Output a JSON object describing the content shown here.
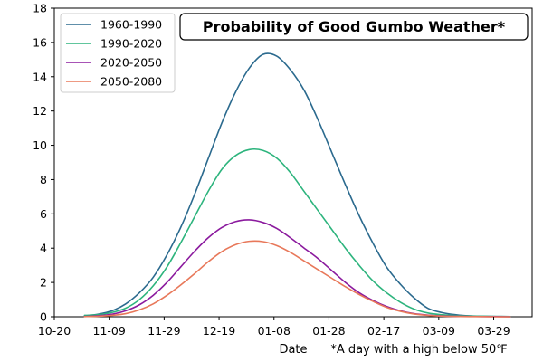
{
  "chart_data": {
    "type": "line",
    "title": "Probability of Good Gumbo Weather*",
    "xlabel": "Date",
    "ylabel": "",
    "footnote": "*A day with a high below 50℉",
    "xlim": [
      "10-20",
      "04-12"
    ],
    "ylim": [
      0,
      18
    ],
    "x_ticks": [
      "10-20",
      "11-09",
      "11-29",
      "12-19",
      "01-08",
      "01-28",
      "02-17",
      "03-09",
      "03-29"
    ],
    "y_ticks": [
      "0",
      "2",
      "4",
      "6",
      "8",
      "10",
      "12",
      "14",
      "16",
      "18"
    ],
    "grid": false,
    "legend_position": "top-left",
    "x": [
      "10-31",
      "11-05",
      "11-10",
      "11-15",
      "11-20",
      "11-25",
      "11-30",
      "12-05",
      "12-10",
      "12-15",
      "12-20",
      "12-25",
      "12-30",
      "01-04",
      "01-09",
      "01-14",
      "01-19",
      "01-24",
      "01-29",
      "02-03",
      "02-08",
      "02-13",
      "02-18",
      "02-23",
      "02-28",
      "03-05",
      "03-10",
      "03-15",
      "03-20",
      "03-25",
      "03-30",
      "04-04"
    ],
    "series": [
      {
        "name": "1960-1990",
        "color": "#2b6a8e",
        "values": [
          0.05,
          0.15,
          0.35,
          0.75,
          1.4,
          2.3,
          3.6,
          5.2,
          7.1,
          9.2,
          11.3,
          13.1,
          14.5,
          15.3,
          15.2,
          14.4,
          13.2,
          11.5,
          9.6,
          7.7,
          5.9,
          4.3,
          2.9,
          1.9,
          1.1,
          0.5,
          0.25,
          0.12,
          0.05,
          0.03,
          0.02,
          0.01
        ]
      },
      {
        "name": "1990-2020",
        "color": "#2db47d",
        "values": [
          0.08,
          0.12,
          0.25,
          0.5,
          1.0,
          1.8,
          2.9,
          4.3,
          5.8,
          7.3,
          8.6,
          9.4,
          9.75,
          9.7,
          9.25,
          8.4,
          7.3,
          6.2,
          5.1,
          4.0,
          3.0,
          2.1,
          1.4,
          0.85,
          0.45,
          0.22,
          0.12,
          0.07,
          0.05,
          0.03,
          0.02,
          0.01
        ]
      },
      {
        "name": "2020-2050",
        "color": "#8b1a9e",
        "values": [
          0.02,
          0.06,
          0.15,
          0.35,
          0.7,
          1.25,
          2.0,
          2.9,
          3.8,
          4.6,
          5.2,
          5.55,
          5.65,
          5.5,
          5.15,
          4.6,
          4.0,
          3.4,
          2.7,
          2.0,
          1.4,
          0.95,
          0.6,
          0.35,
          0.18,
          0.1,
          0.05,
          0.03,
          0.02,
          0.01,
          0.01,
          0.0
        ]
      },
      {
        "name": "2050-2080",
        "color": "#e8785a",
        "values": [
          0.01,
          0.03,
          0.08,
          0.18,
          0.4,
          0.75,
          1.25,
          1.85,
          2.5,
          3.2,
          3.8,
          4.2,
          4.4,
          4.38,
          4.15,
          3.75,
          3.25,
          2.75,
          2.25,
          1.75,
          1.3,
          0.9,
          0.55,
          0.32,
          0.16,
          0.08,
          0.04,
          0.02,
          0.01,
          0.01,
          0.0,
          0.0
        ]
      }
    ]
  }
}
